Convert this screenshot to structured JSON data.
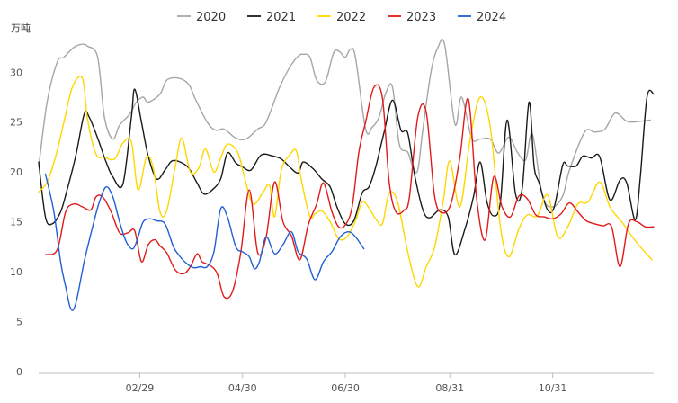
{
  "chart_data": {
    "type": "line",
    "ylabel": "万吨",
    "ylim": [
      0,
      33
    ],
    "yticks": [
      0,
      5,
      10,
      15,
      20,
      25,
      30
    ],
    "xlim": [
      0,
      365
    ],
    "xticks": [
      {
        "label": "02/29",
        "x": 60
      },
      {
        "label": "04/30",
        "x": 121
      },
      {
        "label": "06/30",
        "x": 182
      },
      {
        "label": "08/31",
        "x": 244
      },
      {
        "label": "10/31",
        "x": 305
      }
    ],
    "legend_position": "top",
    "grid": false,
    "series": [
      {
        "name": "2020",
        "color": "#a6a6a6",
        "x": [
          0,
          5,
          11,
          15,
          21,
          26,
          29,
          35,
          39,
          44,
          48,
          54,
          58,
          62,
          65,
          72,
          76,
          83,
          89,
          93,
          100,
          105,
          110,
          117,
          123,
          130,
          135,
          143,
          149,
          154,
          157,
          161,
          165,
          170,
          174,
          176,
          179,
          182,
          185,
          188,
          194,
          198,
          202,
          206,
          210,
          214,
          219,
          222,
          225,
          228,
          233,
          237,
          241,
          247,
          251,
          257,
          262,
          268,
          273,
          279,
          284,
          289,
          293,
          299,
          305,
          311,
          315,
          324,
          330,
          336,
          342,
          348,
          351,
          358,
          363
        ],
        "values": [
          20.5,
          27.0,
          31.0,
          31.5,
          32.5,
          32.8,
          32.6,
          31.5,
          25.5,
          23.3,
          24.7,
          25.8,
          27.0,
          27.5,
          27.0,
          27.8,
          29.2,
          29.4,
          28.8,
          27.3,
          25.0,
          24.2,
          24.3,
          23.4,
          23.3,
          24.3,
          25.0,
          28.5,
          30.5,
          31.6,
          31.8,
          31.5,
          29.2,
          29.0,
          31.4,
          32.2,
          32.0,
          31.5,
          32.3,
          31.5,
          24.3,
          24.5,
          25.5,
          27.9,
          28.5,
          22.8,
          22.0,
          20.5,
          20.2,
          24.3,
          30.2,
          32.5,
          32.7,
          24.8,
          27.5,
          23.4,
          23.3,
          23.3,
          21.9,
          23.5,
          22.0,
          21.2,
          23.8,
          17.6,
          16.5,
          17.6,
          20.2,
          24.0,
          24.0,
          24.3,
          25.9,
          25.2,
          25.0,
          25.1,
          25.2
        ]
      },
      {
        "name": "2021",
        "color": "#1a1a1a",
        "x": [
          0,
          4,
          8,
          13,
          17,
          22,
          27,
          30,
          35,
          40,
          44,
          50,
          55,
          57,
          61,
          65,
          70,
          75,
          79,
          84,
          89,
          94,
          98,
          103,
          108,
          112,
          117,
          121,
          126,
          132,
          139,
          144,
          149,
          154,
          157,
          163,
          168,
          173,
          177,
          182,
          187,
          192,
          196,
          200,
          205,
          210,
          215,
          219,
          223,
          228,
          232,
          238,
          243,
          247,
          253,
          258,
          262,
          266,
          270,
          274,
          278,
          283,
          287,
          291,
          294,
          297,
          302,
          306,
          311,
          314,
          319,
          323,
          328,
          333,
          339,
          345,
          349,
          354,
          357,
          361,
          365
        ],
        "values": [
          21.0,
          15.5,
          14.8,
          16.0,
          18.3,
          21.6,
          25.8,
          25.5,
          23.4,
          21.0,
          19.5,
          18.8,
          25.5,
          28.3,
          25.0,
          21.6,
          19.3,
          20.2,
          21.1,
          21.0,
          20.4,
          18.9,
          17.8,
          18.2,
          19.3,
          21.9,
          20.9,
          20.5,
          20.2,
          21.7,
          21.6,
          21.3,
          20.5,
          19.9,
          21.0,
          20.3,
          19.3,
          18.5,
          16.5,
          14.8,
          15.1,
          17.9,
          18.5,
          20.5,
          24.0,
          27.2,
          24.2,
          23.9,
          19.8,
          16.2,
          15.4,
          16.2,
          15.5,
          11.7,
          14.3,
          17.5,
          21.0,
          17.0,
          15.6,
          17.0,
          25.2,
          17.8,
          18.4,
          27.0,
          20.6,
          18.9,
          16.2,
          16.5,
          20.7,
          20.6,
          20.6,
          21.6,
          21.4,
          21.5,
          17.2,
          19.2,
          18.9,
          15.2,
          19.4,
          27.5,
          27.8
        ]
      },
      {
        "name": "2022",
        "color": "#ffd700",
        "x": [
          0,
          5,
          10,
          15,
          20,
          26,
          29,
          34,
          39,
          45,
          50,
          55,
          59,
          64,
          68,
          72,
          76,
          81,
          85,
          90,
          95,
          99,
          104,
          108,
          112,
          118,
          122,
          127,
          133,
          137,
          140,
          144,
          149,
          153,
          156,
          161,
          164,
          168,
          173,
          178,
          183,
          188,
          192,
          196,
          200,
          204,
          208,
          213,
          219,
          225,
          230,
          235,
          240,
          244,
          250,
          256,
          262,
          268,
          274,
          279,
          285,
          290,
          296,
          302,
          308,
          314,
          320,
          326,
          333,
          339,
          346,
          351,
          357,
          364
        ],
        "values": [
          18.0,
          19.0,
          21.5,
          25.0,
          28.5,
          29.4,
          25.3,
          21.8,
          21.5,
          21.3,
          22.9,
          23.0,
          18.2,
          21.5,
          20.4,
          16.0,
          16.1,
          20.5,
          23.4,
          20.0,
          20.4,
          22.3,
          20.0,
          21.4,
          22.8,
          22.0,
          19.6,
          16.8,
          17.9,
          18.7,
          15.5,
          20.2,
          21.7,
          22.1,
          19.1,
          15.5,
          15.8,
          16.1,
          15.0,
          13.3,
          13.5,
          15.1,
          17.0,
          16.4,
          15.3,
          14.8,
          17.9,
          17.0,
          12.0,
          8.5,
          10.5,
          12.5,
          17.0,
          21.1,
          16.5,
          23.2,
          27.5,
          24.5,
          14.5,
          11.5,
          14.3,
          15.7,
          15.6,
          17.7,
          13.5,
          14.5,
          16.8,
          17.0,
          19.0,
          16.5,
          15.0,
          13.8,
          12.5,
          11.2
        ]
      },
      {
        "name": "2023",
        "color": "#e11a1a",
        "x": [
          4,
          11,
          16,
          21,
          26,
          31,
          34,
          38,
          43,
          48,
          53,
          57,
          61,
          65,
          69,
          72,
          76,
          81,
          86,
          90,
          94,
          97,
          102,
          106,
          110,
          115,
          120,
          125,
          130,
          135,
          140,
          145,
          150,
          155,
          160,
          165,
          169,
          174,
          178,
          182,
          186,
          190,
          194,
          199,
          204,
          208,
          212,
          217,
          220,
          225,
          230,
          235,
          240,
          245,
          250,
          255,
          260,
          265,
          270,
          275,
          280,
          285,
          290,
          295,
          300,
          305,
          310,
          315,
          320,
          325,
          330,
          335,
          340,
          345,
          350,
          355,
          360,
          365
        ],
        "values": [
          11.7,
          12.2,
          16.0,
          16.8,
          16.5,
          16.2,
          17.5,
          17.5,
          16.0,
          13.9,
          13.9,
          14.1,
          11.0,
          12.7,
          13.2,
          12.6,
          11.9,
          10.2,
          9.8,
          10.5,
          11.8,
          11.0,
          10.6,
          9.8,
          7.5,
          8.0,
          12.0,
          18.2,
          11.9,
          13.5,
          19.0,
          15.0,
          13.6,
          11.2,
          14.7,
          16.8,
          18.9,
          16.0,
          14.5,
          14.7,
          16.5,
          22.0,
          25.0,
          28.5,
          27.4,
          19.0,
          16.0,
          16.2,
          17.5,
          25.5,
          26.0,
          17.5,
          15.9,
          17.0,
          21.5,
          27.3,
          17.2,
          13.2,
          19.5,
          16.5,
          15.5,
          17.6,
          17.3,
          15.7,
          15.5,
          15.3,
          15.8,
          16.9,
          16.0,
          15.1,
          14.8,
          14.6,
          14.5,
          10.5,
          14.8,
          15.0,
          14.5,
          14.5
        ]
      },
      {
        "name": "2024",
        "color": "#1f5fd6",
        "x": [
          4,
          9,
          13,
          16,
          19,
          22,
          27,
          32,
          36,
          40,
          44,
          48,
          52,
          56,
          59,
          62,
          66,
          70,
          75,
          80,
          84,
          88,
          92,
          96,
          100,
          104,
          108,
          112,
          117,
          121,
          125,
          128,
          131,
          135,
          140,
          145,
          150,
          154,
          159,
          164,
          169,
          174,
          179,
          184,
          188,
          193,
          197,
          202
        ],
        "values": [
          19.8,
          16.0,
          11.0,
          8.5,
          6.3,
          6.8,
          11.0,
          14.5,
          17.0,
          18.5,
          17.5,
          15.0,
          13.0,
          12.3,
          13.5,
          15.0,
          15.3,
          15.1,
          14.8,
          12.5,
          11.5,
          10.8,
          10.4,
          10.5,
          10.5,
          12.0,
          16.3,
          15.5,
          12.5,
          12.0,
          11.5,
          10.3,
          11.0,
          13.5,
          11.8,
          12.7,
          14.0,
          12.0,
          11.3,
          9.2,
          11.0,
          12.0,
          13.5,
          14.0,
          13.5,
          12.3,
          null,
          null
        ]
      }
    ]
  }
}
